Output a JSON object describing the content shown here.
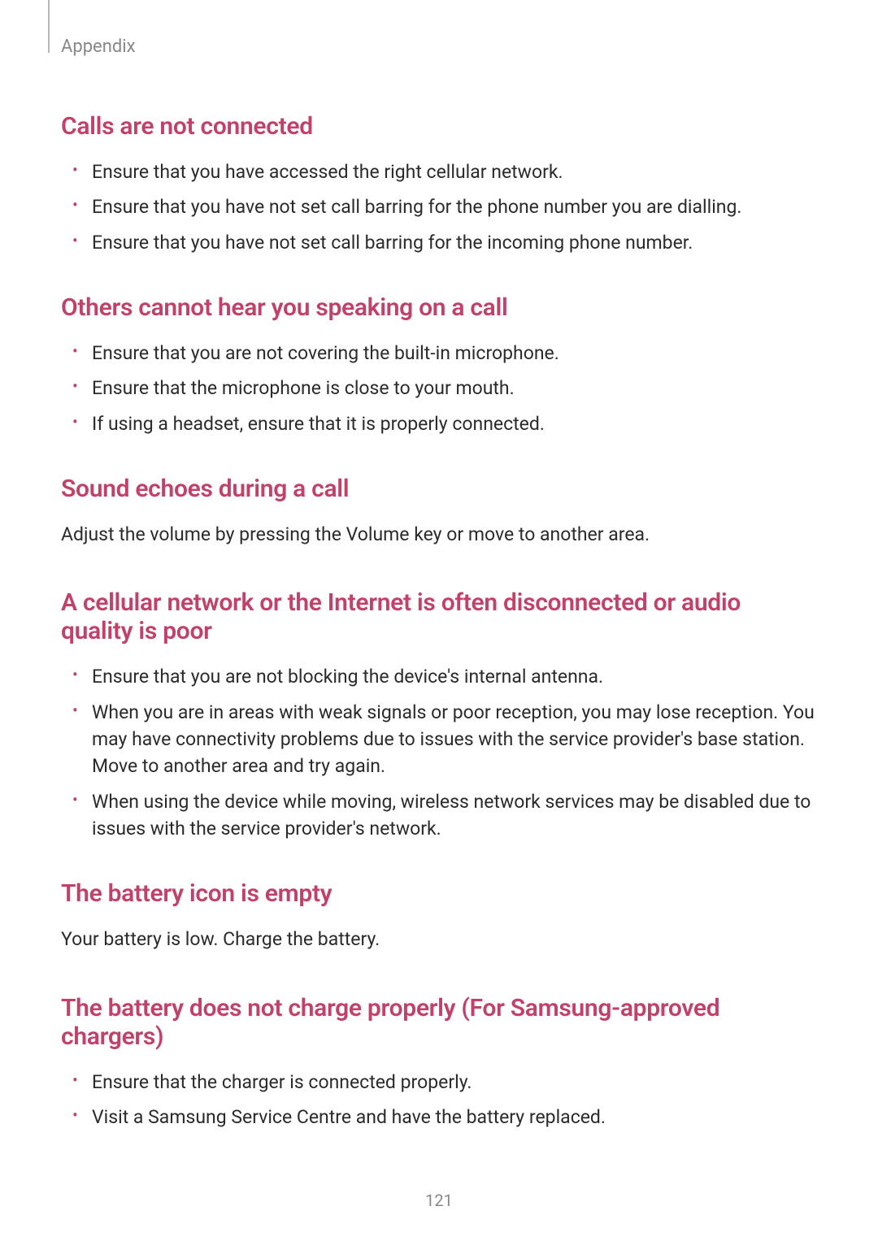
{
  "header": {
    "section_name": "Appendix"
  },
  "colors": {
    "heading": "#c24169",
    "body_text": "#2b2b2b",
    "header_text": "#888888",
    "header_line": "#b8b8b8",
    "page_number": "#888888",
    "bullet": "#c24169",
    "background": "#ffffff"
  },
  "typography": {
    "heading_size": 30,
    "body_size": 23,
    "header_size": 22,
    "page_num_size": 20
  },
  "sections": [
    {
      "heading": "Calls are not connected",
      "type": "list",
      "items": [
        "Ensure that you have accessed the right cellular network.",
        "Ensure that you have not set call barring for the phone number you are dialling.",
        "Ensure that you have not set call barring for the incoming phone number."
      ]
    },
    {
      "heading": "Others cannot hear you speaking on a call",
      "type": "list",
      "items": [
        "Ensure that you are not covering the built-in microphone.",
        "Ensure that the microphone is close to your mouth.",
        "If using a headset, ensure that it is properly connected."
      ]
    },
    {
      "heading": "Sound echoes during a call",
      "type": "paragraph",
      "text": "Adjust the volume by pressing the Volume key or move to another area."
    },
    {
      "heading": "A cellular network or the Internet is often disconnected or audio quality is poor",
      "type": "list",
      "items": [
        "Ensure that you are not blocking the device's internal antenna.",
        "When you are in areas with weak signals or poor reception, you may lose reception. You may have connectivity problems due to issues with the service provider's base station. Move to another area and try again.",
        "When using the device while moving, wireless network services may be disabled due to issues with the service provider's network."
      ]
    },
    {
      "heading": "The battery icon is empty",
      "type": "paragraph",
      "text": "Your battery is low. Charge the battery."
    },
    {
      "heading": "The battery does not charge properly (For Samsung-approved chargers)",
      "type": "list",
      "items": [
        "Ensure that the charger is connected properly.",
        "Visit a Samsung Service Centre and have the battery replaced."
      ]
    }
  ],
  "page_number": "121"
}
